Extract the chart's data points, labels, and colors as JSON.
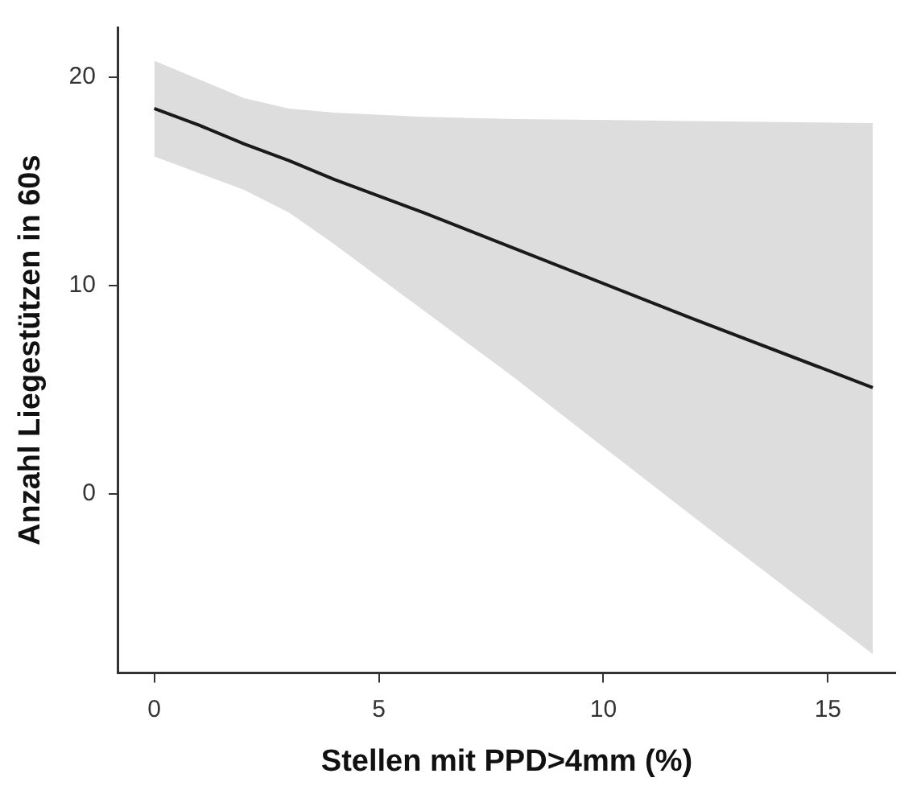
{
  "chart_data": {
    "type": "line",
    "xlabel": "Stellen mit PPD>4mm (%)",
    "ylabel": "Anzahl Liegestützen in 60s",
    "series": [
      {
        "color": "#1a1a1a",
        "x": [
          0,
          1,
          2,
          3,
          4,
          6,
          8,
          12,
          16
        ],
        "values": [
          18.5,
          17.7,
          16.8,
          16.0,
          15.1,
          13.5,
          11.8,
          8.4,
          5.1
        ],
        "lower": [
          16.2,
          15.4,
          14.6,
          13.5,
          12.0,
          8.8,
          5.6,
          -1.1,
          -7.7
        ],
        "upper": [
          20.8,
          19.9,
          19.0,
          18.5,
          18.3,
          18.1,
          18.0,
          17.9,
          17.8
        ]
      }
    ],
    "xlim": [
      -0.8,
      16.5
    ],
    "xticks": [
      0,
      5,
      10,
      15
    ],
    "ylim": [
      -8.6,
      22.4
    ],
    "yticks": [
      0,
      10,
      20
    ],
    "grid": false,
    "legend": false,
    "marker": "none",
    "line_style": "solid"
  }
}
